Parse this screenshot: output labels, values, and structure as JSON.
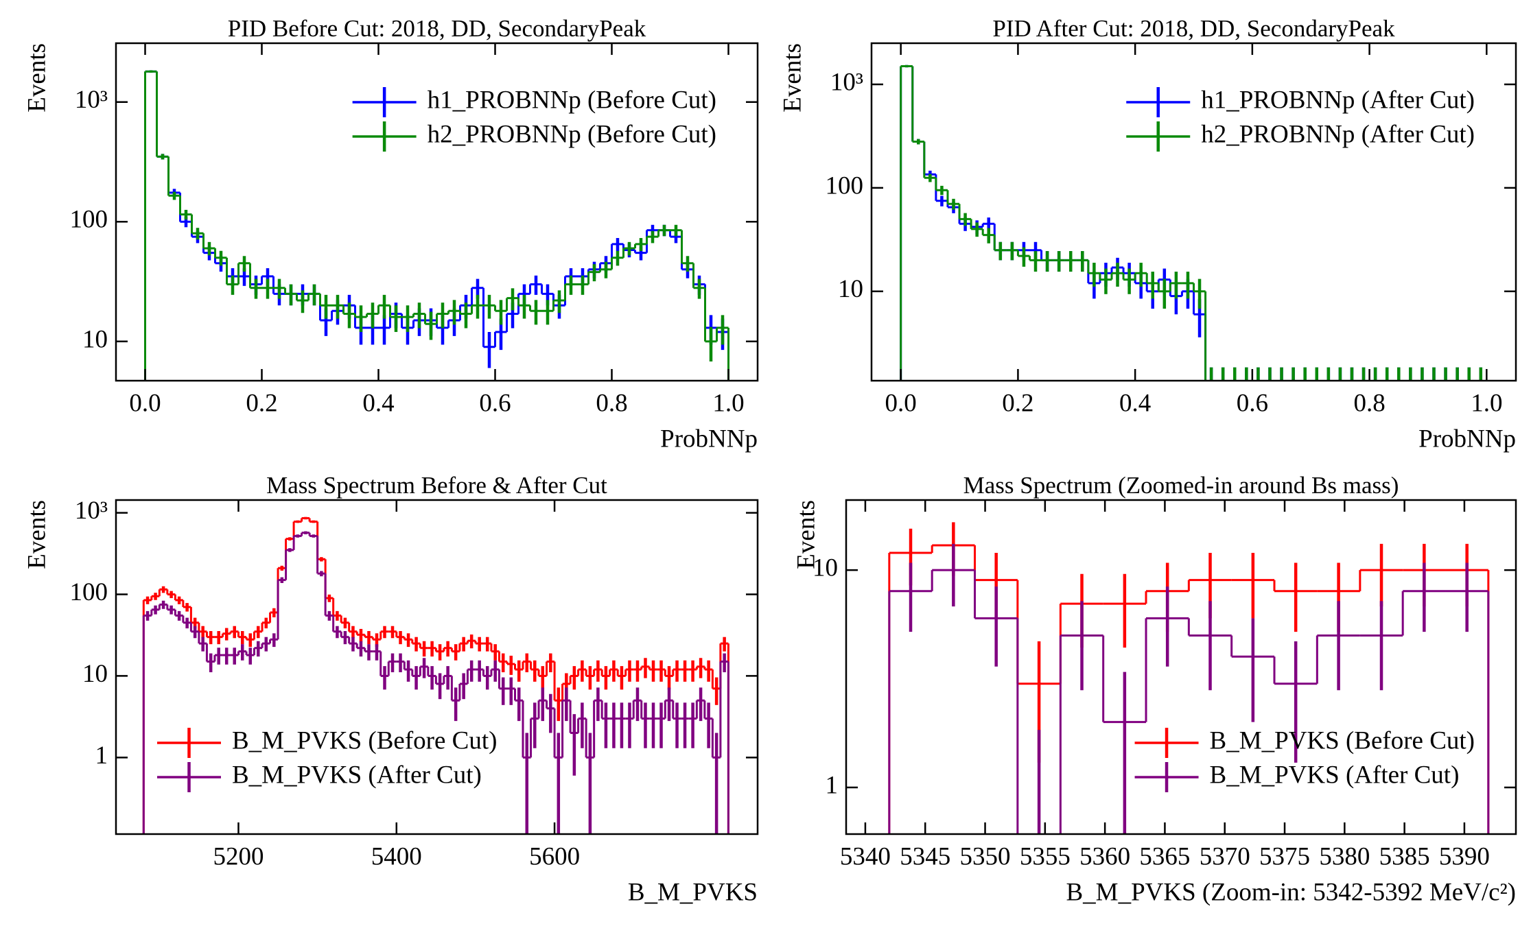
{
  "chart_data": [
    {
      "type": "histogram",
      "title": "PID Before Cut: 2018, DD, SecondaryPeak",
      "xlabel": "ProbNNp",
      "ylabel": "Events",
      "log_y": true,
      "legend": "upper right",
      "xlim": [
        -0.05,
        1.05
      ],
      "ylim": [
        4.7,
        3100
      ],
      "xticks": [
        {
          "value": 0,
          "label": "0.0"
        },
        0.2,
        0.4,
        0.6,
        0.8,
        {
          "value": 1,
          "label": "1.0"
        }
      ],
      "yticks": [
        10,
        100,
        {
          "value": 1000,
          "label": "10³"
        }
      ],
      "bins": [
        0,
        0.02,
        0.04,
        0.06,
        0.08,
        0.1,
        0.12,
        0.14,
        0.16,
        0.18,
        0.2,
        0.22,
        0.24,
        0.26,
        0.28,
        0.3,
        0.32,
        0.34,
        0.36,
        0.38,
        0.4,
        0.42,
        0.44,
        0.46,
        0.48,
        0.5,
        0.52,
        0.54,
        0.56,
        0.58,
        0.6,
        0.62,
        0.64,
        0.66,
        0.68,
        0.7,
        0.72,
        0.74,
        0.76,
        0.78,
        0.8,
        0.82,
        0.84,
        0.86,
        0.88,
        0.9,
        0.92,
        0.94,
        0.96,
        0.98,
        1
      ],
      "series": [
        {
          "name": "h1_PROBNNp (Before Cut)",
          "color": "#0000ff",
          "values": [
            1800,
            350,
            175,
            100,
            75,
            55,
            45,
            35,
            35,
            30,
            35,
            25,
            25,
            25,
            25,
            15,
            18,
            20,
            13,
            13,
            13,
            17,
            13,
            15,
            15,
            13,
            15,
            20,
            28,
            9,
            12,
            17,
            25,
            30,
            25,
            20,
            35,
            35,
            40,
            45,
            65,
            58,
            55,
            85,
            85,
            75,
            40,
            30,
            13,
            12
          ],
          "errors": [
            42.4,
            18.7,
            13.2,
            10,
            8.7,
            7.4,
            6.7,
            5.9,
            5.9,
            5.5,
            5.9,
            5,
            5,
            5,
            5,
            3.9,
            4.2,
            4.5,
            3.6,
            3.6,
            3.6,
            4.1,
            3.6,
            3.9,
            3.9,
            3.6,
            3.9,
            4.5,
            5.3,
            3,
            3.5,
            4.1,
            5,
            5.5,
            5,
            4.5,
            5.9,
            5.9,
            6.3,
            6.7,
            8.1,
            7.6,
            7.4,
            9.2,
            9.2,
            8.7,
            6.3,
            5.5,
            3.6,
            3.5
          ]
        },
        {
          "name": "h2_PROBNNp (Before Cut)",
          "color": "#0a8a0a",
          "values": [
            1800,
            350,
            165,
            115,
            80,
            60,
            50,
            30,
            45,
            28,
            28,
            28,
            25,
            22,
            25,
            20,
            20,
            17,
            16,
            17,
            20,
            16,
            16,
            17,
            14,
            17,
            18,
            17,
            20,
            20,
            18,
            23,
            20,
            18,
            18,
            22,
            30,
            30,
            38,
            40,
            50,
            60,
            65,
            75,
            85,
            85,
            45,
            28,
            10,
            13
          ],
          "errors": [
            42.4,
            18.7,
            12.8,
            10.7,
            8.9,
            7.7,
            7.1,
            5.5,
            6.7,
            5.3,
            5.3,
            5.3,
            5,
            4.7,
            5,
            4.5,
            4.5,
            4.1,
            4,
            4.1,
            4.5,
            4,
            4,
            4.1,
            3.7,
            4.1,
            4.2,
            4.1,
            4.5,
            4.5,
            4.2,
            4.8,
            4.5,
            4.2,
            4.2,
            4.7,
            5.5,
            5.5,
            6.2,
            6.3,
            7.1,
            7.7,
            8.1,
            8.7,
            9.2,
            9.2,
            6.7,
            5.3,
            3.2,
            3.6
          ]
        }
      ]
    },
    {
      "type": "histogram",
      "title": "PID After Cut: 2018, DD, SecondaryPeak",
      "xlabel": "ProbNNp",
      "ylabel": "Events",
      "log_y": true,
      "legend": "upper right",
      "xlim": [
        -0.05,
        1.05
      ],
      "ylim": [
        1.37,
        2500
      ],
      "xticks": [
        {
          "value": 0,
          "label": "0.0"
        },
        0.2,
        0.4,
        0.6,
        0.8,
        {
          "value": 1,
          "label": "1.0"
        }
      ],
      "yticks": [
        10,
        100,
        {
          "value": 1000,
          "label": "10³"
        }
      ],
      "bins": [
        0,
        0.02,
        0.04,
        0.06,
        0.08,
        0.1,
        0.12,
        0.14,
        0.16,
        0.18,
        0.2,
        0.22,
        0.24,
        0.26,
        0.28,
        0.3,
        0.32,
        0.34,
        0.36,
        0.38,
        0.4,
        0.42,
        0.44,
        0.46,
        0.48,
        0.5,
        0.52,
        0.54,
        0.56,
        0.58,
        0.6,
        0.62,
        0.64,
        0.66,
        0.68,
        0.7,
        0.72,
        0.74,
        0.76,
        0.78,
        0.8,
        0.82,
        0.84,
        0.86,
        0.88,
        0.9,
        0.92,
        0.94,
        0.96,
        0.98,
        1
      ],
      "series": [
        {
          "name": "h1_PROBNNp (After Cut)",
          "color": "#0000ff",
          "values": [
            1500,
            280,
            135,
            75,
            65,
            45,
            42,
            45,
            25,
            25,
            25,
            25,
            20,
            20,
            20,
            20,
            12,
            15,
            17,
            15,
            12,
            10,
            13,
            9,
            10,
            6,
            0,
            0,
            0,
            0,
            0,
            0,
            0,
            0,
            0,
            0,
            0,
            0,
            0,
            0,
            0,
            0,
            0,
            0,
            0,
            0,
            0,
            0,
            0,
            0
          ],
          "errors": [
            38.7,
            16.7,
            11.6,
            8.7,
            8.1,
            6.7,
            6.5,
            6.7,
            5,
            5,
            5,
            5,
            4.5,
            4.5,
            4.5,
            4.5,
            3.5,
            3.9,
            4.1,
            3.9,
            3.5,
            3.2,
            3.6,
            3,
            3.2,
            2.4,
            1.84,
            1.84,
            1.84,
            1.84,
            1.84,
            1.84,
            1.84,
            1.84,
            1.84,
            1.84,
            1.84,
            1.84,
            1.84,
            1.84,
            1.84,
            1.84,
            1.84,
            1.84,
            1.84,
            1.84,
            1.84,
            1.84,
            1.84,
            1.84
          ]
        },
        {
          "name": "h2_PROBNNp (After Cut)",
          "color": "#0a8a0a",
          "values": [
            1500,
            280,
            125,
            95,
            70,
            50,
            40,
            35,
            25,
            25,
            22,
            20,
            20,
            20,
            20,
            20,
            15,
            13,
            15,
            13,
            15,
            12,
            10,
            12,
            12,
            10,
            0,
            0,
            0,
            0,
            0,
            0,
            0,
            0,
            0,
            0,
            0,
            0,
            0,
            0,
            0,
            0,
            0,
            0,
            0,
            0,
            0,
            0,
            0,
            0
          ],
          "errors": [
            38.7,
            16.7,
            11.2,
            9.7,
            8.4,
            7.1,
            6.3,
            5.9,
            5,
            5,
            4.7,
            4.5,
            4.5,
            4.5,
            4.5,
            4.5,
            3.9,
            3.6,
            3.9,
            3.6,
            3.9,
            3.5,
            3.2,
            3.5,
            3.5,
            3.2,
            1.84,
            1.84,
            1.84,
            1.84,
            1.84,
            1.84,
            1.84,
            1.84,
            1.84,
            1.84,
            1.84,
            1.84,
            1.84,
            1.84,
            1.84,
            1.84,
            1.84,
            1.84,
            1.84,
            1.84,
            1.84,
            1.84,
            1.84,
            1.84
          ]
        }
      ]
    },
    {
      "type": "histogram",
      "title": "Mass Spectrum Before & After Cut",
      "xlabel": "B_M_PVKS",
      "ylabel": "Events",
      "log_y": true,
      "legend": "lower left",
      "xlim": [
        5045,
        5857
      ],
      "ylim": [
        0.115,
        1435
      ],
      "xticks": [
        5200,
        5400,
        5600
      ],
      "yticks": [
        1,
        10,
        100,
        {
          "value": 1000,
          "label": "10³"
        }
      ],
      "bins": [
        5080,
        5090,
        5100,
        5110,
        5120,
        5130,
        5140,
        5150,
        5160,
        5170,
        5180,
        5190,
        5200,
        5210,
        5220,
        5230,
        5240,
        5250,
        5260,
        5270,
        5280,
        5290,
        5300,
        5310,
        5320,
        5330,
        5340,
        5350,
        5360,
        5370,
        5380,
        5390,
        5400,
        5410,
        5420,
        5430,
        5440,
        5450,
        5460,
        5470,
        5480,
        5490,
        5500,
        5510,
        5520,
        5530,
        5540,
        5550,
        5560,
        5570,
        5580,
        5590,
        5600,
        5610,
        5620,
        5630,
        5640,
        5650,
        5660,
        5670,
        5680,
        5690,
        5700,
        5710,
        5720,
        5730,
        5740,
        5750,
        5760,
        5770,
        5780,
        5790,
        5800,
        5810,
        5820
      ],
      "series": [
        {
          "name": "B_M_PVKS (Before Cut)",
          "color": "#ff0000",
          "values": [
            85,
            95,
            115,
            100,
            85,
            70,
            45,
            35,
            30,
            30,
            33,
            35,
            30,
            28,
            35,
            45,
            60,
            210,
            480,
            780,
            860,
            780,
            270,
            90,
            55,
            45,
            35,
            32,
            30,
            28,
            35,
            35,
            30,
            28,
            25,
            22,
            22,
            20,
            22,
            20,
            25,
            27,
            25,
            25,
            20,
            15,
            14,
            12,
            15,
            12,
            10,
            15,
            5,
            8,
            10,
            12,
            10,
            12,
            10,
            12,
            10,
            12,
            12,
            13,
            12,
            12,
            10,
            12,
            12,
            12,
            13,
            12,
            7,
            25
          ],
          "errors": [
            9.2,
            9.7,
            10.7,
            10,
            9.2,
            8.4,
            6.7,
            5.9,
            5.5,
            5.5,
            5.7,
            5.9,
            5.5,
            5.3,
            5.9,
            6.7,
            7.7,
            14.5,
            21.9,
            27.9,
            29.3,
            27.9,
            16.4,
            9.5,
            7.4,
            6.7,
            5.9,
            5.7,
            5.5,
            5.3,
            5.9,
            5.9,
            5.5,
            5.3,
            5,
            4.7,
            4.7,
            4.5,
            4.7,
            4.5,
            5,
            5.2,
            5,
            5,
            4.5,
            3.9,
            3.7,
            3.5,
            3.9,
            3.5,
            3.2,
            3.9,
            2.2,
            2.8,
            3.2,
            3.5,
            3.2,
            3.5,
            3.2,
            3.5,
            3.2,
            3.5,
            3.5,
            3.6,
            3.5,
            3.5,
            3.2,
            3.5,
            3.5,
            3.5,
            3.6,
            3.5,
            2.6,
            5
          ]
        },
        {
          "name": "B_M_PVKS (After Cut)",
          "color": "#800080",
          "values": [
            55,
            65,
            75,
            65,
            55,
            45,
            35,
            25,
            15,
            18,
            18,
            18,
            20,
            18,
            22,
            25,
            28,
            150,
            350,
            520,
            570,
            520,
            180,
            55,
            35,
            30,
            25,
            22,
            20,
            20,
            10,
            15,
            15,
            12,
            10,
            13,
            10,
            8,
            10,
            5,
            8,
            12,
            12,
            10,
            12,
            7,
            7,
            5,
            1,
            3,
            5,
            4,
            1,
            5,
            2,
            3,
            1,
            5,
            3,
            3,
            3,
            3,
            5,
            3,
            3,
            3,
            5,
            3,
            3,
            3,
            5,
            3,
            1,
            15
          ],
          "errors": [
            7.4,
            8.1,
            8.7,
            8.1,
            7.4,
            6.7,
            5.9,
            5,
            3.9,
            4.2,
            4.2,
            4.2,
            4.5,
            4.2,
            4.7,
            5,
            5.3,
            12.2,
            18.7,
            22.8,
            23.9,
            22.8,
            13.4,
            7.4,
            5.9,
            5.5,
            5,
            4.7,
            4.5,
            4.5,
            3.2,
            3.9,
            3.9,
            3.5,
            3.2,
            3.6,
            3.2,
            2.8,
            3.2,
            2.2,
            2.8,
            3.5,
            3.5,
            3.2,
            3.5,
            2.6,
            2.6,
            2.2,
            1,
            1.7,
            2.2,
            2,
            1,
            2.2,
            1.4,
            1.7,
            1,
            2.2,
            1.7,
            1.7,
            1.7,
            1.7,
            2.2,
            1.7,
            1.7,
            1.7,
            2.2,
            1.7,
            1.7,
            1.7,
            2.2,
            1.7,
            1,
            3.9
          ]
        }
      ]
    },
    {
      "type": "histogram",
      "title": "Mass Spectrum (Zoomed-in around Bs mass)",
      "xlabel": "B_M_PVKS (Zoom-in: 5342-5392 MeV/c²)",
      "ylabel": "Events",
      "log_y": true,
      "legend": "lower right",
      "xlim": [
        5338.4,
        5394.3
      ],
      "ylim": [
        0.61,
        21
      ],
      "xticks": [
        5340,
        5345,
        5350,
        5355,
        5360,
        5365,
        5370,
        5375,
        5380,
        5385,
        5390
      ],
      "yticks": [
        1,
        10
      ],
      "bins": [
        5342,
        5345.57,
        5349.14,
        5352.71,
        5356.29,
        5359.86,
        5363.43,
        5367,
        5370.57,
        5374.14,
        5377.71,
        5381.29,
        5384.86,
        5388.43,
        5392
      ],
      "series": [
        {
          "name": "B_M_PVKS (Before Cut)",
          "color": "#ff0000",
          "values": [
            12,
            13,
            9,
            3,
            7,
            7,
            8,
            9,
            9,
            8,
            8,
            10,
            10,
            10
          ],
          "errors": [
            3.5,
            3.6,
            3,
            1.7,
            2.6,
            2.6,
            2.8,
            3,
            3,
            2.8,
            2.8,
            3.2,
            3.2,
            3.2
          ]
        },
        {
          "name": "B_M_PVKS (After Cut)",
          "color": "#800080",
          "values": [
            8,
            10,
            6,
            0,
            5,
            2,
            6,
            5,
            4,
            3,
            5,
            5,
            8,
            8
          ],
          "errors": [
            2.8,
            3.2,
            2.4,
            1.84,
            2.2,
            1.4,
            2.4,
            2.2,
            2,
            1.7,
            2.2,
            2.2,
            2.8,
            2.8
          ]
        }
      ]
    }
  ]
}
